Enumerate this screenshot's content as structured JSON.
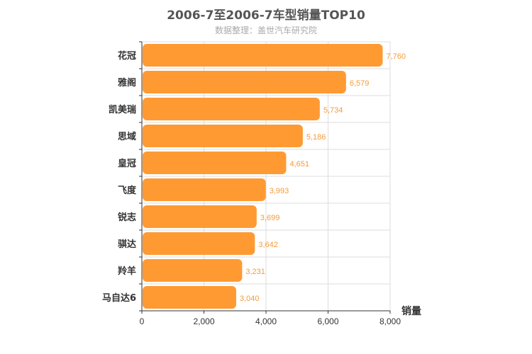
{
  "chart_data": {
    "type": "bar",
    "orientation": "horizontal",
    "title": "2006-7至2006-7车型销量TOP10",
    "subtitle": "数据整理：盖世汽车研究院",
    "xlabel": "销量",
    "ylabel": "",
    "categories": [
      "花冠",
      "雅阁",
      "凯美瑞",
      "思域",
      "皇冠",
      "飞度",
      "锐志",
      "骐达",
      "羚羊",
      "马自达6"
    ],
    "values": [
      7760,
      6579,
      5734,
      5186,
      4651,
      3993,
      3699,
      3642,
      3231,
      3040
    ],
    "value_labels": [
      "7,760",
      "6,579",
      "5,734",
      "5,186",
      "4,651",
      "3,993",
      "3,699",
      "3,642",
      "3,231",
      "3,040"
    ],
    "xlim": [
      0,
      8000
    ],
    "x_ticks": [
      0,
      2000,
      4000,
      6000,
      8000
    ],
    "x_tick_labels": [
      "0",
      "2,000",
      "4,000",
      "6,000",
      "8,000"
    ],
    "grid": true,
    "legend": "none",
    "bar_color": "#ff9a33",
    "label_color": "#f59b3a"
  }
}
